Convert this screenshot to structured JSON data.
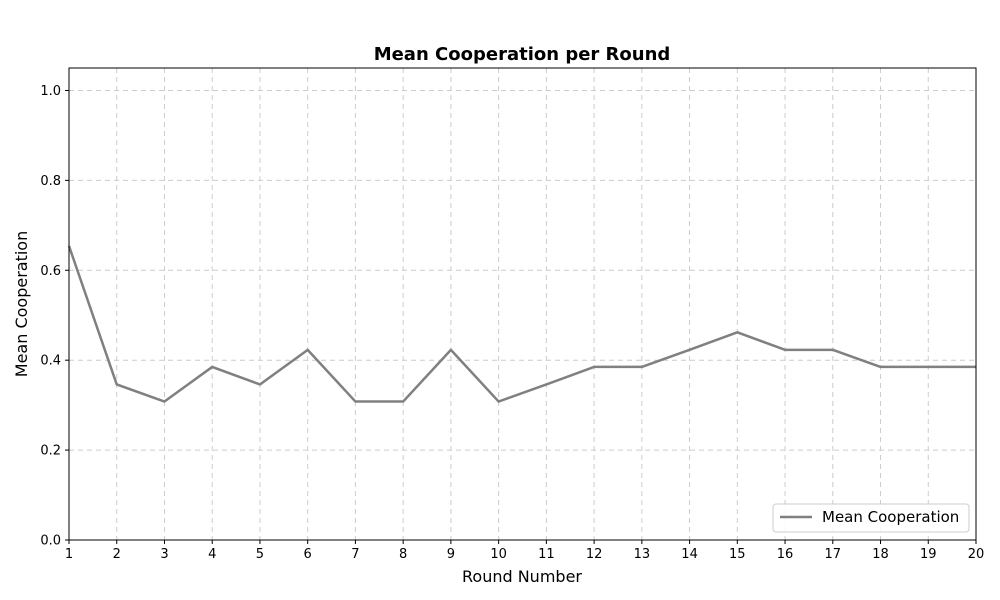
{
  "chart_data": {
    "type": "line",
    "title": "Mean Cooperation per Round",
    "xlabel": "Round Number",
    "ylabel": "Mean Cooperation",
    "xlim": [
      1,
      20
    ],
    "ylim": [
      0.0,
      1.05
    ],
    "x": [
      1,
      2,
      3,
      4,
      5,
      6,
      7,
      8,
      9,
      10,
      11,
      12,
      13,
      14,
      15,
      16,
      17,
      18,
      19,
      20
    ],
    "x_tick_labels": [
      "1",
      "2",
      "3",
      "4",
      "5",
      "6",
      "7",
      "8",
      "9",
      "10",
      "11",
      "12",
      "13",
      "14",
      "15",
      "16",
      "17",
      "18",
      "19",
      "20"
    ],
    "y_ticks": [
      0.0,
      0.2,
      0.4,
      0.6,
      0.8,
      1.0
    ],
    "y_tick_labels": [
      "0.0",
      "0.2",
      "0.4",
      "0.6",
      "0.8",
      "1.0"
    ],
    "series": [
      {
        "name": "Mean Cooperation",
        "color": "#808080",
        "values": [
          0.654,
          0.346,
          0.308,
          0.385,
          0.346,
          0.423,
          0.308,
          0.308,
          0.423,
          0.308,
          0.346,
          0.385,
          0.385,
          0.423,
          0.462,
          0.423,
          0.423,
          0.385,
          0.385,
          0.385
        ]
      }
    ],
    "grid": true,
    "legend_position": "lower-right"
  }
}
